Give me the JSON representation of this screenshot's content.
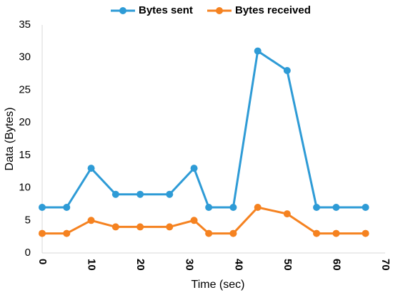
{
  "chart_data": {
    "type": "line",
    "xlabel": "Time (sec)",
    "ylabel": "Data (Bytes)",
    "xlim": [
      0,
      70
    ],
    "ylim": [
      0,
      35
    ],
    "x_ticks": [
      "0",
      "10",
      "20",
      "30",
      "40",
      "50",
      "60",
      "70"
    ],
    "y_ticks": [
      "0",
      "5",
      "10",
      "15",
      "20",
      "25",
      "30",
      "35"
    ],
    "grid": false,
    "legend_position": "top-center",
    "series": [
      {
        "name": "Bytes sent",
        "color": "#2E9BD6",
        "points": [
          [
            0,
            7
          ],
          [
            5,
            7
          ],
          [
            10,
            13
          ],
          [
            15,
            9
          ],
          [
            20,
            9
          ],
          [
            26,
            9
          ],
          [
            31,
            13
          ],
          [
            34,
            7
          ],
          [
            39,
            7
          ],
          [
            44,
            31
          ],
          [
            50,
            28
          ],
          [
            56,
            7
          ],
          [
            60,
            7
          ],
          [
            66,
            7
          ]
        ]
      },
      {
        "name": "Bytes received",
        "color": "#F58220",
        "points": [
          [
            0,
            3
          ],
          [
            5,
            3
          ],
          [
            10,
            5
          ],
          [
            15,
            4
          ],
          [
            20,
            4
          ],
          [
            26,
            4
          ],
          [
            31,
            5
          ],
          [
            34,
            3
          ],
          [
            39,
            3
          ],
          [
            44,
            7
          ],
          [
            50,
            6
          ],
          [
            56,
            3
          ],
          [
            60,
            3
          ],
          [
            66,
            3
          ]
        ]
      }
    ]
  }
}
